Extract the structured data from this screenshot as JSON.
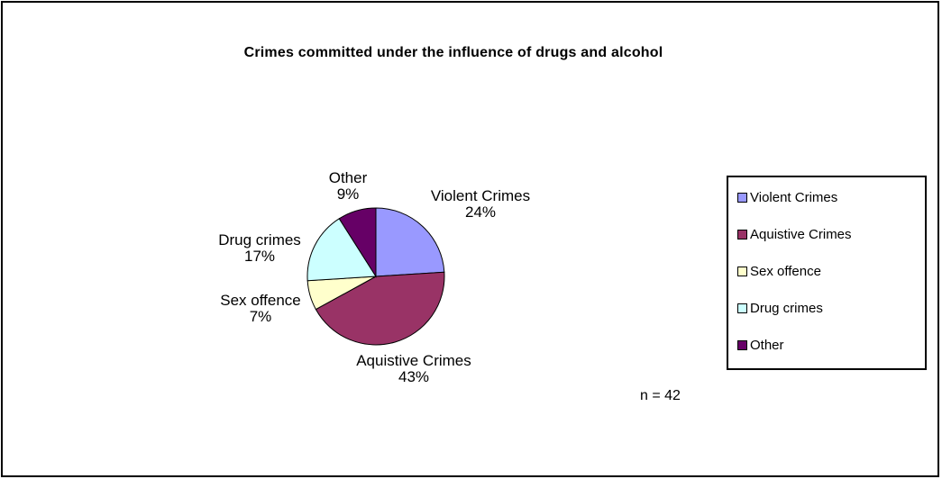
{
  "chart_data": {
    "type": "pie",
    "title": "Crimes committed under the influence of drugs and alcohol",
    "slices": [
      {
        "name": "Violent Crimes",
        "percent_label": "24%",
        "value": 24,
        "color": "#9999FF"
      },
      {
        "name": "Aquistive Crimes",
        "percent_label": "43%",
        "value": 43,
        "color": "#993366"
      },
      {
        "name": "Sex offence",
        "percent_label": "7%",
        "value": 7,
        "color": "#FFFFCC"
      },
      {
        "name": "Drug crimes",
        "percent_label": "17%",
        "value": 17,
        "color": "#CCFFFF"
      },
      {
        "name": "Other",
        "percent_label": "9%",
        "value": 9,
        "color": "#660066"
      }
    ],
    "legend_placement": "right",
    "annotation": "n = 42"
  }
}
